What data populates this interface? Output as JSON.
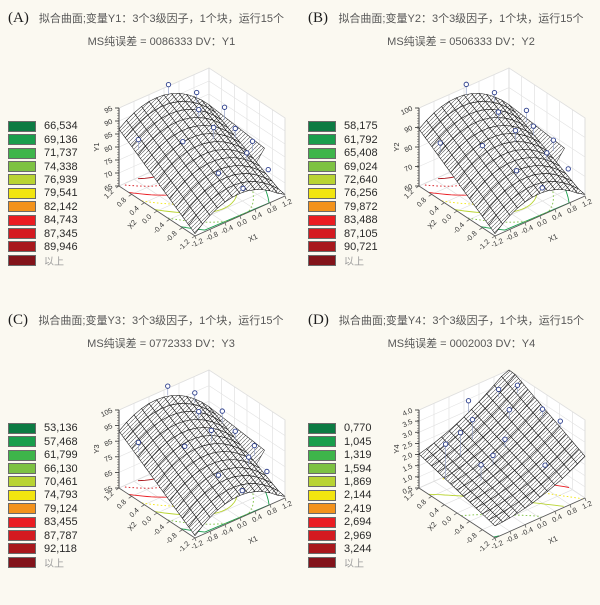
{
  "page": {
    "background": "#fbf9f1"
  },
  "palette": [
    "#0c7b43",
    "#199e4c",
    "#3eb54a",
    "#7dc242",
    "#b9d432",
    "#f2e50f",
    "#f3921b",
    "#ea1c22",
    "#d41a20",
    "#a8171c",
    "#83131a"
  ],
  "panels": [
    {
      "label": "(A)",
      "title": "拟合曲面;变量Y1：3个3级因子，1个块，运行15个",
      "subtitle": "MS纯误差  = 0086333   DV：Y1",
      "legend": {
        "values": [
          "66,534",
          "69,136",
          "71,737",
          "74,338",
          "76,939",
          "79,541",
          "82,142",
          "84,743",
          "87,345",
          "89,946",
          "以上"
        ]
      },
      "chart_data": {
        "type": "surface3d",
        "z_axis_title": "Y1",
        "x1_axis_title": "X1",
        "x2_axis_title": "X2",
        "z_ticks": [
          "65",
          "70",
          "75",
          "80",
          "85",
          "90",
          "95"
        ],
        "x1_ticks": [
          "-1.2",
          "-0.8",
          "-0.4",
          "0.0",
          "0.4",
          "0.8",
          "1.2"
        ],
        "x2_ticks": [
          "1.2",
          "0.8",
          "0.4",
          "0.0",
          "-0.4",
          "-0.8",
          "-1.2"
        ],
        "z_range": [
          65,
          95
        ],
        "model": {
          "k": 0.6,
          "pu": -0.06,
          "pv": 0.31,
          "puu": -0.28,
          "puv": -0.04
        },
        "fold_right": true,
        "contour_levels": [
          0.16,
          0.28,
          0.4,
          0.52,
          0.64,
          0.76,
          0.86
        ],
        "points": [
          [
            -0.95,
            0.55,
            0.13
          ],
          [
            0.1,
            1.0,
            0.12
          ],
          [
            0.6,
            0.85,
            0.13
          ],
          [
            1.05,
            0.65,
            0.16
          ],
          [
            0.35,
            0.5,
            0.1
          ],
          [
            -0.3,
            0.15,
            0.02
          ],
          [
            0.3,
            0.05,
            0.15
          ],
          [
            0.95,
            0.25,
            0.12
          ],
          [
            1.08,
            -0.05,
            0.13
          ],
          [
            0.7,
            -0.35,
            0.1
          ],
          [
            1.05,
            -0.5,
            0.04
          ],
          [
            -0.1,
            -0.55,
            0.0
          ],
          [
            0.05,
            -1.02,
            0.06
          ]
        ]
      }
    },
    {
      "label": "(B)",
      "title": "拟合曲面;变量Y2：3个3级因子，1个块，运行15个",
      "subtitle": "MS纯误差  = 0506333   DV：Y2",
      "legend": {
        "values": [
          "58,175",
          "61,792",
          "65,408",
          "69,024",
          "72,640",
          "76,256",
          "79,872",
          "83,488",
          "87,105",
          "90,721",
          "以上"
        ]
      },
      "chart_data": {
        "type": "surface3d",
        "z_axis_title": "Y2",
        "x1_axis_title": "X1",
        "x2_axis_title": "X2",
        "z_ticks": [
          "60",
          "70",
          "80",
          "90",
          "100"
        ],
        "x1_ticks": [
          "-1.2",
          "-0.8",
          "-0.4",
          "0.0",
          "0.4",
          "0.8",
          "1.2"
        ],
        "x2_ticks": [
          "1.2",
          "0.8",
          "0.4",
          "0.0",
          "-0.4",
          "-0.8",
          "-1.2"
        ],
        "z_range": [
          60,
          100
        ],
        "model": {
          "k": 0.6,
          "pu": -0.06,
          "pv": 0.31,
          "puu": -0.28,
          "puv": -0.04
        },
        "fold_right": true,
        "contour_levels": [
          0.16,
          0.28,
          0.4,
          0.52,
          0.64,
          0.76,
          0.86
        ],
        "points": [
          [
            -0.95,
            0.5,
            0.12
          ],
          [
            0.05,
            1.0,
            0.13
          ],
          [
            0.55,
            0.85,
            0.12
          ],
          [
            1.05,
            0.6,
            0.15
          ],
          [
            0.3,
            0.45,
            0.1
          ],
          [
            -0.35,
            0.1,
            0.02
          ],
          [
            0.3,
            0.0,
            0.14
          ],
          [
            0.95,
            0.3,
            0.12
          ],
          [
            1.1,
            -0.05,
            0.14
          ],
          [
            0.7,
            -0.35,
            0.1
          ],
          [
            1.05,
            -0.5,
            0.05
          ],
          [
            -0.1,
            -0.5,
            0.0
          ],
          [
            0.05,
            -1.0,
            0.06
          ]
        ]
      }
    },
    {
      "label": "(C)",
      "title": "拟合曲面;变量Y3：3个3级因子，1个块，运行15个",
      "subtitle": "MS纯误差  = 0772333   DV：Y3",
      "legend": {
        "values": [
          "53,136",
          "57,468",
          "61,799",
          "66,130",
          "70,461",
          "74,793",
          "79,124",
          "83,455",
          "87,787",
          "92,118",
          "以上"
        ]
      },
      "chart_data": {
        "type": "surface3d",
        "z_axis_title": "Y3",
        "x1_axis_title": "X1",
        "x2_axis_title": "X2",
        "z_ticks": [
          "55",
          "65",
          "75",
          "85",
          "95",
          "105"
        ],
        "x1_ticks": [
          "-1.2",
          "-0.8",
          "-0.4",
          "0.0",
          "0.4",
          "0.8",
          "1.2"
        ],
        "x2_ticks": [
          "1.2",
          "0.8",
          "0.4",
          "0.0",
          "-0.4",
          "-0.8",
          "-1.2"
        ],
        "z_range": [
          55,
          105
        ],
        "model": {
          "k": 0.6,
          "pu": -0.06,
          "pv": 0.31,
          "puu": -0.28,
          "puv": -0.04
        },
        "fold_right": true,
        "contour_levels": [
          0.16,
          0.28,
          0.4,
          0.52,
          0.64,
          0.76,
          0.86
        ],
        "points": [
          [
            -0.95,
            0.55,
            0.12
          ],
          [
            0.1,
            1.02,
            0.12
          ],
          [
            0.6,
            0.9,
            0.12
          ],
          [
            1.0,
            0.65,
            0.15
          ],
          [
            0.35,
            0.5,
            0.1
          ],
          [
            -0.3,
            0.1,
            0.02
          ],
          [
            0.25,
            0.05,
            0.14
          ],
          [
            0.95,
            0.25,
            0.11
          ],
          [
            1.08,
            -0.1,
            0.13
          ],
          [
            0.7,
            -0.4,
            0.1
          ],
          [
            1.02,
            -0.5,
            0.05
          ],
          [
            -0.1,
            -0.55,
            0.0
          ],
          [
            0.05,
            -1.0,
            0.05
          ]
        ]
      }
    },
    {
      "label": "(D)",
      "title": "拟合曲面;变量Y4：3个3级因子，1个块，运行15个",
      "subtitle": "MS纯误差  = 0002003   DV：Y4",
      "legend": {
        "values": [
          "0,770",
          "1,045",
          "1,319",
          "1,594",
          "1,869",
          "2,144",
          "2,419",
          "2,694",
          "2,969",
          "3,244",
          "以上"
        ]
      },
      "chart_data": {
        "type": "surface3d",
        "z_axis_title": "Y4",
        "x1_axis_title": "X1",
        "x2_axis_title": "X2",
        "z_ticks": [
          "0.5",
          "1.0",
          "1.5",
          "2.0",
          "2.5",
          "3.0",
          "3.5",
          "4.0"
        ],
        "x1_ticks": [
          "-1.2",
          "-0.8",
          "-0.4",
          "0.0",
          "0.4",
          "0.8",
          "1.2"
        ],
        "x2_ticks": [
          "1.2",
          "0.8",
          "0.4",
          "0.0",
          "-0.4",
          "-0.8",
          "-1.2"
        ],
        "z_range": [
          0.5,
          4.0
        ],
        "model": {
          "k": 0.46,
          "pu": 0.245,
          "pv": 0.195,
          "puu": 0.08,
          "puv": 0.055
        },
        "fold_right": false,
        "contour_levels": [
          0.16,
          0.28,
          0.4,
          0.52,
          0.64,
          0.76,
          0.86
        ],
        "points": [
          [
            -1.0,
            0.3,
            0.45
          ],
          [
            -0.5,
            0.5,
            0.3
          ],
          [
            -0.15,
            0.6,
            0.25
          ],
          [
            0.1,
            1.0,
            0.15
          ],
          [
            0.6,
            0.8,
            0.1
          ],
          [
            -0.55,
            -0.1,
            0.2
          ],
          [
            -0.2,
            0.0,
            0.12
          ],
          [
            0.15,
            0.1,
            0.1
          ],
          [
            0.5,
            0.4,
            0.12
          ],
          [
            0.85,
            0.6,
            0.1
          ],
          [
            0.9,
            0.0,
            0.1
          ],
          [
            1.0,
            -0.35,
            0.08
          ],
          [
            0.45,
            -0.6,
            -0.02
          ]
        ]
      }
    }
  ]
}
